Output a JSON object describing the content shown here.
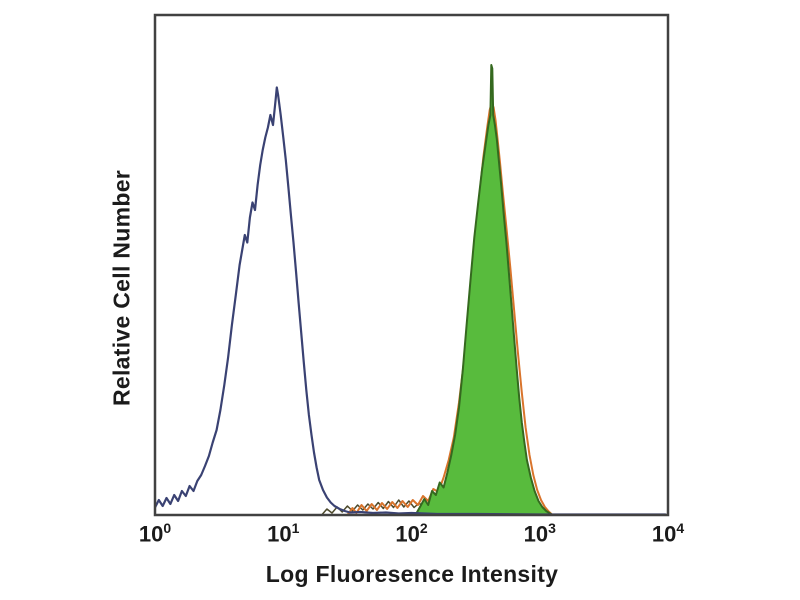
{
  "figure": {
    "background": "#ffffff"
  },
  "chart_data": {
    "type": "area",
    "subtype": "flow-cytometry-overlay-histogram",
    "title": "",
    "xlabel": "Log Fluoresence Intensity",
    "ylabel": "Relative Cell Number",
    "x_scale": "log10",
    "x_decades": [
      0,
      4
    ],
    "ylim": [
      0,
      1
    ],
    "grid": false,
    "legend": false,
    "frame_color": "#414141",
    "text_color": "#1b1b1b",
    "x_ticks": [
      {
        "label": "10",
        "exp": "0",
        "log": 0
      },
      {
        "label": "10",
        "exp": "1",
        "log": 1
      },
      {
        "label": "10",
        "exp": "2",
        "log": 2
      },
      {
        "label": "10",
        "exp": "3",
        "log": 3
      },
      {
        "label": "10",
        "exp": "4",
        "log": 4
      }
    ],
    "series": [
      {
        "name": "baseline-noise",
        "type": "line",
        "color": "#4d4a2c",
        "width": 1.5,
        "points": [
          [
            1.3,
            0.0
          ],
          [
            1.34,
            0.012
          ],
          [
            1.38,
            0.004
          ],
          [
            1.42,
            0.016
          ],
          [
            1.46,
            0.006
          ],
          [
            1.5,
            0.018
          ],
          [
            1.54,
            0.008
          ],
          [
            1.58,
            0.02
          ],
          [
            1.62,
            0.01
          ],
          [
            1.66,
            0.022
          ],
          [
            1.7,
            0.012
          ],
          [
            1.74,
            0.025
          ],
          [
            1.78,
            0.013
          ],
          [
            1.82,
            0.027
          ],
          [
            1.86,
            0.015
          ],
          [
            1.9,
            0.03
          ],
          [
            1.94,
            0.016
          ],
          [
            1.98,
            0.028
          ],
          [
            2.02,
            0.015
          ],
          [
            2.06,
            0.024
          ],
          [
            2.1,
            0.013
          ],
          [
            2.14,
            0.022
          ],
          [
            2.18,
            0.011
          ],
          [
            2.22,
            0.019
          ],
          [
            2.26,
            0.009
          ],
          [
            2.3,
            0.007
          ],
          [
            2.35,
            0.004
          ],
          [
            2.4,
            0.0
          ]
        ]
      },
      {
        "name": "orange-stained-outline",
        "type": "line",
        "color": "#d9742c",
        "width": 2,
        "points": [
          [
            1.5,
            0.0
          ],
          [
            1.54,
            0.014
          ],
          [
            1.57,
            0.004
          ],
          [
            1.61,
            0.02
          ],
          [
            1.65,
            0.008
          ],
          [
            1.69,
            0.022
          ],
          [
            1.73,
            0.01
          ],
          [
            1.77,
            0.024
          ],
          [
            1.81,
            0.012
          ],
          [
            1.85,
            0.026
          ],
          [
            1.89,
            0.014
          ],
          [
            1.93,
            0.028
          ],
          [
            1.97,
            0.016
          ],
          [
            2.01,
            0.03
          ],
          [
            2.05,
            0.02
          ],
          [
            2.09,
            0.038
          ],
          [
            2.13,
            0.028
          ],
          [
            2.17,
            0.052
          ],
          [
            2.21,
            0.046
          ],
          [
            2.25,
            0.075
          ],
          [
            2.29,
            0.11
          ],
          [
            2.33,
            0.155
          ],
          [
            2.37,
            0.225
          ],
          [
            2.41,
            0.31
          ],
          [
            2.45,
            0.415
          ],
          [
            2.49,
            0.53
          ],
          [
            2.53,
            0.64
          ],
          [
            2.56,
            0.715
          ],
          [
            2.59,
            0.775
          ],
          [
            2.61,
            0.81
          ],
          [
            2.625,
            0.825
          ],
          [
            2.64,
            0.815
          ],
          [
            2.655,
            0.79
          ],
          [
            2.67,
            0.755
          ],
          [
            2.69,
            0.705
          ],
          [
            2.71,
            0.65
          ],
          [
            2.74,
            0.575
          ],
          [
            2.77,
            0.495
          ],
          [
            2.8,
            0.41
          ],
          [
            2.83,
            0.325
          ],
          [
            2.86,
            0.245
          ],
          [
            2.89,
            0.175
          ],
          [
            2.92,
            0.12
          ],
          [
            2.95,
            0.08
          ],
          [
            2.98,
            0.05
          ],
          [
            3.01,
            0.03
          ],
          [
            3.04,
            0.016
          ],
          [
            3.07,
            0.007
          ],
          [
            3.1,
            0.0
          ]
        ]
      },
      {
        "name": "green-stained-filled",
        "type": "area",
        "color": "#35691f",
        "fill": "#58bb3d",
        "width": 2,
        "points": [
          [
            2.04,
            0.004
          ],
          [
            2.07,
            0.018
          ],
          [
            2.1,
            0.032
          ],
          [
            2.13,
            0.02
          ],
          [
            2.16,
            0.048
          ],
          [
            2.19,
            0.04
          ],
          [
            2.22,
            0.065
          ],
          [
            2.25,
            0.055
          ],
          [
            2.28,
            0.085
          ],
          [
            2.31,
            0.12
          ],
          [
            2.34,
            0.16
          ],
          [
            2.37,
            0.215
          ],
          [
            2.4,
            0.29
          ],
          [
            2.43,
            0.38
          ],
          [
            2.46,
            0.47
          ],
          [
            2.49,
            0.555
          ],
          [
            2.52,
            0.625
          ],
          [
            2.55,
            0.69
          ],
          [
            2.58,
            0.745
          ],
          [
            2.6,
            0.78
          ],
          [
            2.615,
            0.8
          ],
          [
            2.622,
            0.9
          ],
          [
            2.63,
            0.893
          ],
          [
            2.637,
            0.8
          ],
          [
            2.65,
            0.78
          ],
          [
            2.665,
            0.752
          ],
          [
            2.68,
            0.712
          ],
          [
            2.7,
            0.658
          ],
          [
            2.72,
            0.6
          ],
          [
            2.74,
            0.545
          ],
          [
            2.76,
            0.482
          ],
          [
            2.78,
            0.42
          ],
          [
            2.8,
            0.355
          ],
          [
            2.82,
            0.292
          ],
          [
            2.84,
            0.235
          ],
          [
            2.86,
            0.185
          ],
          [
            2.88,
            0.145
          ],
          [
            2.9,
            0.11
          ],
          [
            2.93,
            0.075
          ],
          [
            2.96,
            0.048
          ],
          [
            2.99,
            0.028
          ],
          [
            3.02,
            0.016
          ],
          [
            3.05,
            0.008
          ],
          [
            3.08,
            0.003
          ],
          [
            3.1,
            0.0
          ]
        ]
      },
      {
        "name": "blue-unstained-control",
        "type": "line",
        "color": "#3a4273",
        "width": 2.2,
        "points": [
          [
            0.0,
            0.015
          ],
          [
            0.03,
            0.03
          ],
          [
            0.06,
            0.018
          ],
          [
            0.09,
            0.034
          ],
          [
            0.12,
            0.022
          ],
          [
            0.15,
            0.04
          ],
          [
            0.18,
            0.028
          ],
          [
            0.21,
            0.048
          ],
          [
            0.24,
            0.038
          ],
          [
            0.27,
            0.058
          ],
          [
            0.3,
            0.048
          ],
          [
            0.33,
            0.068
          ],
          [
            0.36,
            0.08
          ],
          [
            0.39,
            0.098
          ],
          [
            0.42,
            0.118
          ],
          [
            0.45,
            0.145
          ],
          [
            0.48,
            0.17
          ],
          [
            0.51,
            0.21
          ],
          [
            0.54,
            0.26
          ],
          [
            0.57,
            0.315
          ],
          [
            0.6,
            0.38
          ],
          [
            0.63,
            0.44
          ],
          [
            0.66,
            0.5
          ],
          [
            0.68,
            0.53
          ],
          [
            0.7,
            0.56
          ],
          [
            0.72,
            0.545
          ],
          [
            0.74,
            0.595
          ],
          [
            0.76,
            0.625
          ],
          [
            0.78,
            0.61
          ],
          [
            0.8,
            0.66
          ],
          [
            0.82,
            0.7
          ],
          [
            0.84,
            0.73
          ],
          [
            0.86,
            0.755
          ],
          [
            0.88,
            0.775
          ],
          [
            0.9,
            0.8
          ],
          [
            0.92,
            0.78
          ],
          [
            0.94,
            0.83
          ],
          [
            0.95,
            0.855
          ],
          [
            0.96,
            0.84
          ],
          [
            0.98,
            0.8
          ],
          [
            1.0,
            0.755
          ],
          [
            1.02,
            0.71
          ],
          [
            1.04,
            0.655
          ],
          [
            1.06,
            0.6
          ],
          [
            1.08,
            0.545
          ],
          [
            1.1,
            0.485
          ],
          [
            1.12,
            0.425
          ],
          [
            1.14,
            0.365
          ],
          [
            1.16,
            0.305
          ],
          [
            1.18,
            0.25
          ],
          [
            1.2,
            0.2
          ],
          [
            1.22,
            0.16
          ],
          [
            1.24,
            0.125
          ],
          [
            1.26,
            0.095
          ],
          [
            1.28,
            0.07
          ],
          [
            1.31,
            0.05
          ],
          [
            1.34,
            0.035
          ],
          [
            1.37,
            0.025
          ],
          [
            1.4,
            0.018
          ],
          [
            1.44,
            0.012
          ],
          [
            1.48,
            0.008
          ],
          [
            1.52,
            0.005
          ],
          [
            1.6,
            0.006
          ],
          [
            1.7,
            0.004
          ],
          [
            1.8,
            0.005
          ],
          [
            1.9,
            0.003
          ],
          [
            2.0,
            0.004
          ],
          [
            2.2,
            0.002
          ],
          [
            2.5,
            0.002
          ],
          [
            3.0,
            0.001
          ],
          [
            3.98,
            0.001
          ]
        ]
      }
    ]
  }
}
